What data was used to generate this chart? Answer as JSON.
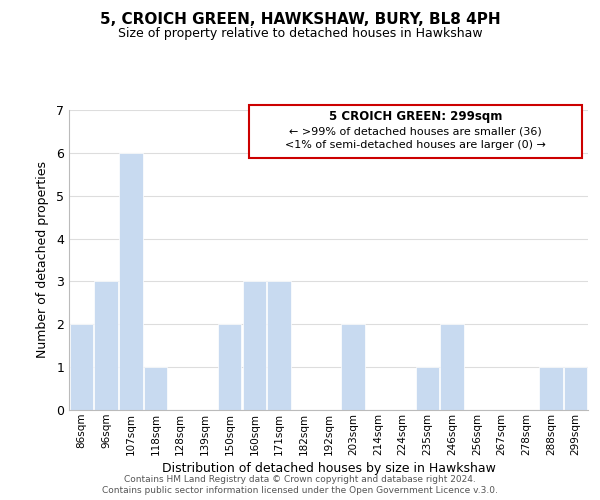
{
  "title": "5, CROICH GREEN, HAWKSHAW, BURY, BL8 4PH",
  "subtitle": "Size of property relative to detached houses in Hawkshaw",
  "xlabel": "Distribution of detached houses by size in Hawkshaw",
  "ylabel": "Number of detached properties",
  "bar_labels": [
    "86sqm",
    "96sqm",
    "107sqm",
    "118sqm",
    "128sqm",
    "139sqm",
    "150sqm",
    "160sqm",
    "171sqm",
    "182sqm",
    "192sqm",
    "203sqm",
    "214sqm",
    "224sqm",
    "235sqm",
    "246sqm",
    "256sqm",
    "267sqm",
    "278sqm",
    "288sqm",
    "299sqm"
  ],
  "bar_values": [
    2,
    3,
    6,
    1,
    0,
    0,
    2,
    3,
    3,
    0,
    0,
    2,
    0,
    0,
    1,
    2,
    0,
    0,
    0,
    1,
    1
  ],
  "bar_color": "#c8daf0",
  "ylim": [
    0,
    7
  ],
  "yticks": [
    0,
    1,
    2,
    3,
    4,
    5,
    6,
    7
  ],
  "legend_title": "5 CROICH GREEN: 299sqm",
  "legend_line1": "← >99% of detached houses are smaller (36)",
  "legend_line2": "<1% of semi-detached houses are larger (0) →",
  "legend_box_color": "#ffffff",
  "legend_box_edge_color": "#cc0000",
  "footer_line1": "Contains HM Land Registry data © Crown copyright and database right 2024.",
  "footer_line2": "Contains public sector information licensed under the Open Government Licence v.3.0.",
  "background_color": "#ffffff",
  "grid_color": "#dddddd"
}
